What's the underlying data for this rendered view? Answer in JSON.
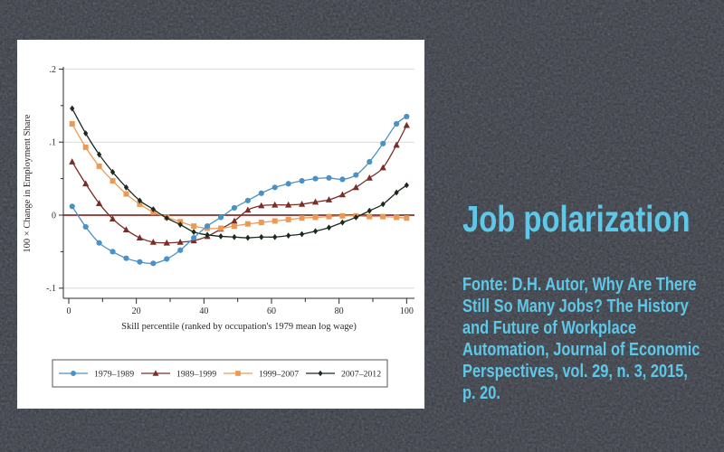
{
  "slide": {
    "title": "Job polarization",
    "citation_lines": [
      "Fonte: D.H. Autor, Why Are There",
      "Still So Many Jobs? The History",
      "and Future of Workplace",
      "Automation, Journal of Economic",
      "Perspectives, vol. 29, n. 3, 2015,",
      "p. 20."
    ],
    "accent_color": "#5ec8e8",
    "background_color": "#575b64",
    "card_color": "#ffffff"
  },
  "chart_data": {
    "type": "line",
    "title": "",
    "xlabel": "Skill percentile (ranked by occupation's 1979 mean log wage)",
    "ylabel": "100 × Change in Employment Share",
    "xlim": [
      0,
      100
    ],
    "ylim": [
      -0.115,
      0.215
    ],
    "x_ticks": [
      0,
      20,
      40,
      60,
      80,
      100
    ],
    "x_minor_ticks": [
      10,
      30,
      50,
      70,
      90
    ],
    "y_ticks": [
      0.2,
      0.1,
      0,
      -0.1
    ],
    "y_tick_labels": [
      ".2",
      ".1",
      "0",
      "-.1"
    ],
    "y_minor_ticks": [
      0.15,
      0.05,
      -0.05
    ],
    "gridline_values": [
      0.2,
      0.1,
      -0.1
    ],
    "grid_color": "#d9d9d9",
    "axis_color": "#2b2b2b",
    "zero_line": {
      "value": 0,
      "color": "#8a2e2b"
    },
    "legend_position": "bottom",
    "x": [
      1,
      5,
      9,
      13,
      17,
      21,
      25,
      29,
      33,
      37,
      41,
      45,
      49,
      53,
      57,
      61,
      65,
      69,
      73,
      77,
      81,
      85,
      89,
      93,
      97,
      100
    ],
    "series": [
      {
        "name": "1979–1989",
        "marker": "circle",
        "color": "#4a92c5",
        "values": [
          0.012,
          -0.016,
          -0.038,
          -0.05,
          -0.059,
          -0.064,
          -0.066,
          -0.06,
          -0.048,
          -0.031,
          -0.015,
          -0.003,
          0.01,
          0.02,
          0.03,
          0.038,
          0.043,
          0.047,
          0.05,
          0.051,
          0.049,
          0.055,
          0.073,
          0.098,
          0.125,
          0.135
        ]
      },
      {
        "name": "1989–1999",
        "marker": "triangle",
        "color": "#7b2d27",
        "values": [
          0.073,
          0.043,
          0.016,
          -0.005,
          -0.02,
          -0.031,
          -0.037,
          -0.038,
          -0.037,
          -0.035,
          -0.029,
          -0.019,
          -0.008,
          0.007,
          0.013,
          0.014,
          0.014,
          0.015,
          0.018,
          0.021,
          0.028,
          0.038,
          0.051,
          0.065,
          0.096,
          0.123
        ]
      },
      {
        "name": "1999–2007",
        "marker": "square",
        "color": "#eb9a55",
        "values": [
          0.125,
          0.093,
          0.067,
          0.047,
          0.029,
          0.015,
          0.004,
          -0.003,
          -0.009,
          -0.015,
          -0.018,
          -0.018,
          -0.015,
          -0.012,
          -0.01,
          -0.008,
          -0.006,
          -0.004,
          -0.003,
          -0.002,
          -0.001,
          -0.001,
          -0.002,
          -0.002,
          -0.003,
          -0.004
        ]
      },
      {
        "name": "2007–2012",
        "marker": "diamond",
        "color": "#1c2a1e",
        "values": [
          0.146,
          0.112,
          0.083,
          0.059,
          0.038,
          0.02,
          0.008,
          -0.004,
          -0.013,
          -0.023,
          -0.027,
          -0.029,
          -0.03,
          -0.031,
          -0.03,
          -0.03,
          -0.028,
          -0.026,
          -0.022,
          -0.017,
          -0.01,
          -0.003,
          0.006,
          0.015,
          0.031,
          0.041
        ]
      }
    ]
  }
}
